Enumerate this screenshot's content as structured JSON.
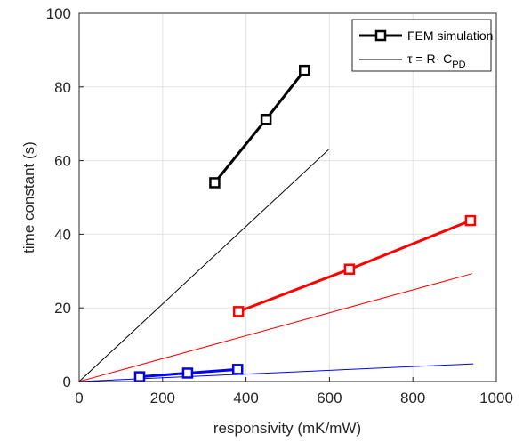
{
  "chart_data": {
    "type": "line",
    "title": "",
    "xlabel": "responsivity (mK/mW)",
    "ylabel": "time constant (s)",
    "xlim": [
      0,
      1000
    ],
    "ylim": [
      0,
      100
    ],
    "x_ticks": [
      "0",
      "200",
      "400",
      "600",
      "800",
      "1000"
    ],
    "y_ticks": [
      "0",
      "20",
      "40",
      "60",
      "80",
      "100"
    ],
    "grid": true,
    "legend_position": "top-right",
    "legend": [
      {
        "label": "FEM simulation",
        "style": "thick line with square markers"
      },
      {
        "label_prefix": "τ = R· C",
        "label_subscript": "PD",
        "style": "thin line"
      }
    ],
    "series": [
      {
        "kind": "FEM simulation",
        "color": "#000000",
        "x": [
          325,
          448,
          540
        ],
        "y": [
          54,
          71.2,
          84.5
        ]
      },
      {
        "kind": "FEM simulation",
        "color": "#ff0000",
        "x": [
          382,
          648,
          938
        ],
        "y": [
          19,
          30.5,
          43.7
        ]
      },
      {
        "kind": "FEM simulation",
        "color": "#0000ff",
        "x": [
          145,
          260,
          380
        ],
        "y": [
          1.3,
          2.3,
          3.3
        ]
      },
      {
        "kind": "τ = R·C_PD",
        "color": "#000000",
        "x": [
          0,
          598
        ],
        "y": [
          0,
          63
        ]
      },
      {
        "kind": "τ = R·C_PD",
        "color": "#ff0000",
        "x": [
          0,
          942
        ],
        "y": [
          0,
          29.3
        ]
      },
      {
        "kind": "τ = R·C_PD",
        "color": "#0000ff",
        "x": [
          0,
          945
        ],
        "y": [
          0,
          4.8
        ]
      }
    ]
  }
}
